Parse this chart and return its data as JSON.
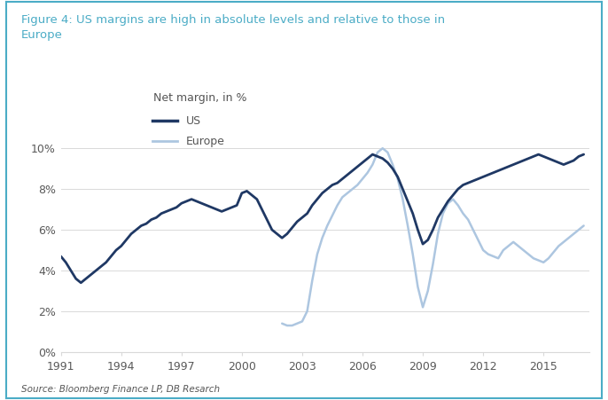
{
  "title_line1": "Figure 4: US margins are high in absolute levels and relative to those in",
  "title_line2": "Europe",
  "title_color": "#4bacc6",
  "ylabel_text": "Net margin, in %",
  "source": "Source: Bloomberg Finance LP, DB Resarch",
  "us_color": "#1f3864",
  "europe_color": "#adc6e0",
  "background_color": "#ffffff",
  "border_color": "#4bacc6",
  "grid_color": "#d9d9d9",
  "tick_color": "#595959",
  "ylim": [
    0,
    0.108
  ],
  "yticks": [
    0,
    0.02,
    0.04,
    0.06,
    0.08,
    0.1
  ],
  "ytick_labels": [
    "0%",
    "2%",
    "4%",
    "6%",
    "8%",
    "10%"
  ],
  "xticks": [
    1991,
    1994,
    1997,
    2000,
    2003,
    2006,
    2009,
    2012,
    2015
  ],
  "us_years": [
    1991.0,
    1991.25,
    1991.5,
    1991.75,
    1992.0,
    1992.25,
    1992.5,
    1992.75,
    1993.0,
    1993.25,
    1993.5,
    1993.75,
    1994.0,
    1994.25,
    1994.5,
    1994.75,
    1995.0,
    1995.25,
    1995.5,
    1995.75,
    1996.0,
    1996.25,
    1996.5,
    1996.75,
    1997.0,
    1997.25,
    1997.5,
    1997.75,
    1998.0,
    1998.25,
    1998.5,
    1998.75,
    1999.0,
    1999.25,
    1999.5,
    1999.75,
    2000.0,
    2000.25,
    2000.5,
    2000.75,
    2001.0,
    2001.25,
    2001.5,
    2001.75,
    2002.0,
    2002.25,
    2002.5,
    2002.75,
    2003.0,
    2003.25,
    2003.5,
    2003.75,
    2004.0,
    2004.25,
    2004.5,
    2004.75,
    2005.0,
    2005.25,
    2005.5,
    2005.75,
    2006.0,
    2006.25,
    2006.5,
    2006.75,
    2007.0,
    2007.25,
    2007.5,
    2007.75,
    2008.0,
    2008.25,
    2008.5,
    2008.75,
    2009.0,
    2009.25,
    2009.5,
    2009.75,
    2010.0,
    2010.25,
    2010.5,
    2010.75,
    2011.0,
    2011.25,
    2011.5,
    2011.75,
    2012.0,
    2012.25,
    2012.5,
    2012.75,
    2013.0,
    2013.25,
    2013.5,
    2013.75,
    2014.0,
    2014.25,
    2014.5,
    2014.75,
    2015.0,
    2015.25,
    2015.5,
    2015.75,
    2016.0,
    2016.25,
    2016.5,
    2016.75,
    2017.0
  ],
  "us_values": [
    0.047,
    0.044,
    0.04,
    0.036,
    0.034,
    0.036,
    0.038,
    0.04,
    0.042,
    0.044,
    0.047,
    0.05,
    0.052,
    0.055,
    0.058,
    0.06,
    0.062,
    0.063,
    0.065,
    0.066,
    0.068,
    0.069,
    0.07,
    0.071,
    0.073,
    0.074,
    0.075,
    0.074,
    0.073,
    0.072,
    0.071,
    0.07,
    0.069,
    0.07,
    0.071,
    0.072,
    0.078,
    0.079,
    0.077,
    0.075,
    0.07,
    0.065,
    0.06,
    0.058,
    0.056,
    0.058,
    0.061,
    0.064,
    0.066,
    0.068,
    0.072,
    0.075,
    0.078,
    0.08,
    0.082,
    0.083,
    0.085,
    0.087,
    0.089,
    0.091,
    0.093,
    0.095,
    0.097,
    0.096,
    0.095,
    0.093,
    0.09,
    0.086,
    0.08,
    0.074,
    0.068,
    0.06,
    0.053,
    0.055,
    0.06,
    0.066,
    0.07,
    0.074,
    0.077,
    0.08,
    0.082,
    0.083,
    0.084,
    0.085,
    0.086,
    0.087,
    0.088,
    0.089,
    0.09,
    0.091,
    0.092,
    0.093,
    0.094,
    0.095,
    0.096,
    0.097,
    0.096,
    0.095,
    0.094,
    0.093,
    0.092,
    0.093,
    0.094,
    0.096,
    0.097
  ],
  "eu_years": [
    2002.0,
    2002.25,
    2002.5,
    2002.75,
    2003.0,
    2003.25,
    2003.5,
    2003.75,
    2004.0,
    2004.25,
    2004.5,
    2004.75,
    2005.0,
    2005.25,
    2005.5,
    2005.75,
    2006.0,
    2006.25,
    2006.5,
    2006.75,
    2007.0,
    2007.25,
    2007.5,
    2007.75,
    2008.0,
    2008.25,
    2008.5,
    2008.75,
    2009.0,
    2009.25,
    2009.5,
    2009.75,
    2010.0,
    2010.25,
    2010.5,
    2010.75,
    2011.0,
    2011.25,
    2011.5,
    2011.75,
    2012.0,
    2012.25,
    2012.5,
    2012.75,
    2013.0,
    2013.25,
    2013.5,
    2013.75,
    2014.0,
    2014.25,
    2014.5,
    2014.75,
    2015.0,
    2015.25,
    2015.5,
    2015.75,
    2016.0,
    2016.25,
    2016.5,
    2016.75,
    2017.0
  ],
  "eu_values": [
    0.014,
    0.013,
    0.013,
    0.014,
    0.015,
    0.02,
    0.035,
    0.048,
    0.056,
    0.062,
    0.067,
    0.072,
    0.076,
    0.078,
    0.08,
    0.082,
    0.085,
    0.088,
    0.092,
    0.098,
    0.1,
    0.098,
    0.092,
    0.085,
    0.075,
    0.062,
    0.048,
    0.032,
    0.022,
    0.03,
    0.043,
    0.058,
    0.068,
    0.073,
    0.075,
    0.072,
    0.068,
    0.065,
    0.06,
    0.055,
    0.05,
    0.048,
    0.047,
    0.046,
    0.05,
    0.052,
    0.054,
    0.052,
    0.05,
    0.048,
    0.046,
    0.045,
    0.044,
    0.046,
    0.049,
    0.052,
    0.054,
    0.056,
    0.058,
    0.06,
    0.062
  ]
}
